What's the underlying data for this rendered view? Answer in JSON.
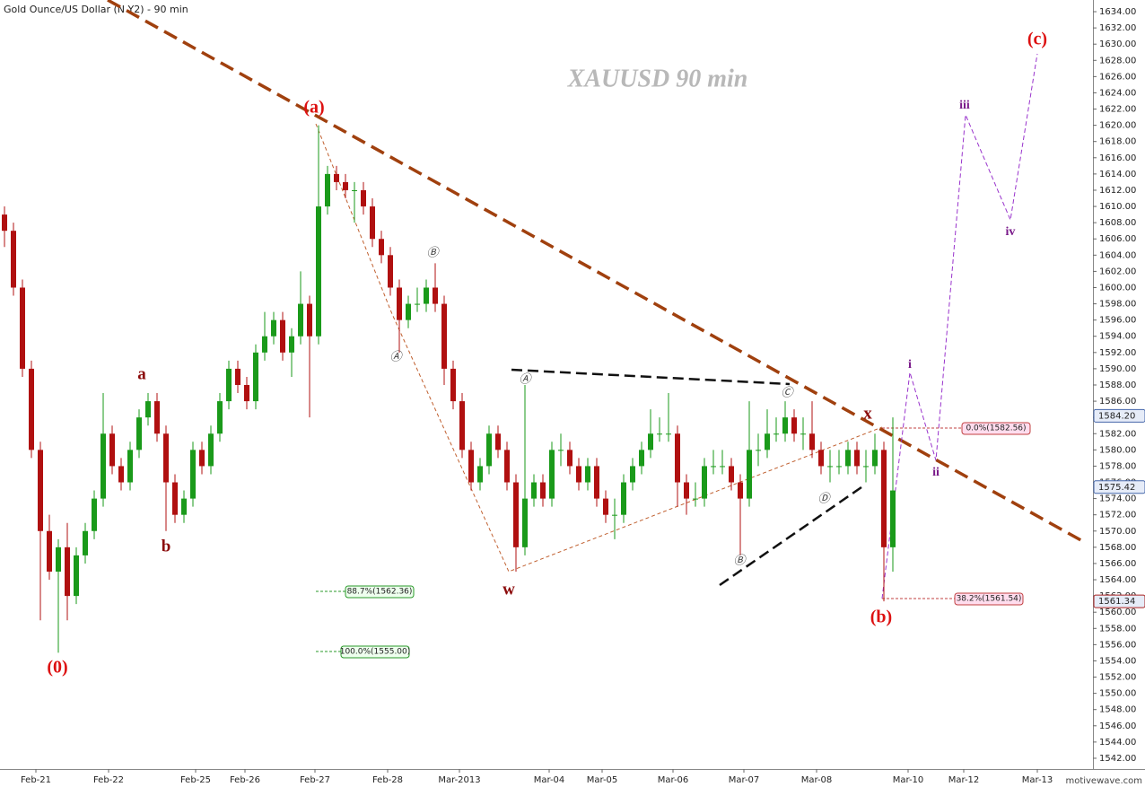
{
  "chart_data": {
    "type": "candlestick",
    "title": "Gold Ounce/US Dollar (N Y2) - 90 min",
    "watermark_title": "XAUUSD  90 min",
    "credit": "motivewave.com",
    "up_color": "#1a9a1a",
    "down_color": "#b01010",
    "x": [
      1,
      3,
      5,
      7,
      9,
      11,
      13,
      15,
      17,
      19,
      21,
      23,
      25,
      27,
      29,
      31,
      33,
      35,
      37,
      39,
      41,
      43,
      45,
      47,
      49,
      51,
      53,
      55,
      57,
      59,
      61,
      63,
      65,
      67,
      69,
      71,
      73,
      75,
      77,
      79,
      81,
      83,
      85,
      87,
      89,
      91,
      93,
      95,
      97,
      99,
      101,
      103,
      105,
      107,
      109,
      111,
      113,
      115,
      117,
      119,
      121,
      123,
      125,
      127,
      129,
      131,
      133,
      135,
      137,
      139,
      141,
      143,
      145,
      147,
      149,
      151,
      153,
      155,
      157,
      159,
      161,
      163,
      165,
      167,
      169,
      171,
      173,
      175,
      177,
      179,
      181,
      183,
      185,
      187,
      189,
      191,
      193,
      195,
      197,
      199
    ],
    "open": [
      1609,
      1607,
      1600,
      1590,
      1580,
      1570,
      1565,
      1568,
      1562,
      1567,
      1570,
      1574,
      1582,
      1578,
      1576,
      1580,
      1584,
      1586,
      1582,
      1576,
      1572,
      1574,
      1580,
      1578,
      1582,
      1586,
      1590,
      1588,
      1586,
      1592,
      1594,
      1596,
      1592,
      1594,
      1598,
      1594,
      1610,
      1614,
      1613,
      1612,
      1612,
      1610,
      1606,
      1604,
      1600,
      1596,
      1598,
      1598,
      1600,
      1598,
      1590,
      1586,
      1580,
      1576,
      1578,
      1582,
      1580,
      1576,
      1568,
      1574,
      1576,
      1574,
      1580,
      1580,
      1578,
      1576,
      1578,
      1574,
      1572,
      1572,
      1576,
      1578,
      1580,
      1582,
      1582,
      1582,
      1576,
      1574,
      1574,
      1578,
      1578,
      1578,
      1576,
      1574,
      1580,
      1580,
      1582,
      1582,
      1584,
      1582,
      1582,
      1580,
      1578,
      1578,
      1578,
      1580,
      1578,
      1578,
      1580,
      1568
    ],
    "high": [
      1610,
      1608,
      1601,
      1591,
      1581,
      1572,
      1569,
      1571,
      1568,
      1571,
      1575,
      1587,
      1583,
      1579,
      1581,
      1585,
      1587,
      1587,
      1583,
      1577,
      1575,
      1581,
      1581,
      1583,
      1587,
      1591,
      1591,
      1589,
      1593,
      1597,
      1597,
      1597,
      1595,
      1602,
      1599,
      1620,
      1615,
      1615,
      1614,
      1613,
      1613,
      1611,
      1607,
      1605,
      1601,
      1599,
      1600,
      1601,
      1603,
      1599,
      1591,
      1587,
      1581,
      1579,
      1583,
      1583,
      1581,
      1577,
      1588,
      1577,
      1577,
      1581,
      1582,
      1581,
      1579,
      1579,
      1579,
      1575,
      1574,
      1577,
      1579,
      1581,
      1585,
      1584,
      1587,
      1583,
      1577,
      1576,
      1579,
      1580,
      1580,
      1579,
      1577,
      1586,
      1582,
      1585,
      1584,
      1586,
      1585,
      1584,
      1586,
      1581,
      1580,
      1580,
      1581,
      1581,
      1580,
      1582,
      1581,
      1584
    ],
    "low": [
      1605,
      1599,
      1589,
      1579,
      1559,
      1564,
      1555,
      1559,
      1561,
      1566,
      1569,
      1573,
      1577,
      1575,
      1575,
      1579,
      1583,
      1581,
      1570,
      1571,
      1571,
      1573,
      1577,
      1577,
      1581,
      1585,
      1587,
      1585,
      1585,
      1591,
      1593,
      1591,
      1589,
      1593,
      1584,
      1593,
      1609,
      1612,
      1611,
      1608,
      1609,
      1605,
      1603,
      1599,
      1592,
      1595,
      1597,
      1597,
      1597,
      1588,
      1585,
      1579,
      1575,
      1575,
      1577,
      1579,
      1575,
      1565,
      1567,
      1573,
      1573,
      1573,
      1578,
      1577,
      1575,
      1575,
      1573,
      1571,
      1569,
      1571,
      1575,
      1577,
      1579,
      1581,
      1581,
      1573,
      1572,
      1573,
      1573,
      1577,
      1577,
      1575,
      1567,
      1573,
      1578,
      1579,
      1581,
      1581,
      1581,
      1580,
      1579,
      1577,
      1576,
      1577,
      1577,
      1577,
      1576,
      1577,
      1561.34,
      1565
    ],
    "close": [
      1607,
      1600,
      1590,
      1580,
      1570,
      1565,
      1568,
      1562,
      1567,
      1570,
      1574,
      1582,
      1578,
      1576,
      1580,
      1584,
      1586,
      1582,
      1576,
      1572,
      1574,
      1580,
      1578,
      1582,
      1586,
      1590,
      1588,
      1586,
      1592,
      1594,
      1596,
      1592,
      1594,
      1598,
      1594,
      1610,
      1614,
      1613,
      1612,
      1612,
      1610,
      1606,
      1604,
      1600,
      1596,
      1598,
      1598,
      1600,
      1598,
      1590,
      1586,
      1580,
      1576,
      1578,
      1582,
      1580,
      1576,
      1568,
      1574,
      1576,
      1574,
      1580,
      1580,
      1578,
      1576,
      1578,
      1574,
      1572,
      1572,
      1576,
      1578,
      1580,
      1582,
      1582,
      1582,
      1576,
      1574,
      1574,
      1578,
      1578,
      1578,
      1576,
      1574,
      1580,
      1580,
      1582,
      1582,
      1584,
      1582,
      1582,
      1580,
      1578,
      1578,
      1578,
      1580,
      1578,
      1578,
      1580,
      1568,
      1575
    ],
    "xlim": [
      0,
      243.6
    ],
    "xticks": [
      {
        "value": 8,
        "label": "Feb-21"
      },
      {
        "value": 24.2,
        "label": "Feb-22"
      },
      {
        "value": 43.6,
        "label": "Feb-25"
      },
      {
        "value": 54.6,
        "label": "Feb-26"
      },
      {
        "value": 70.2,
        "label": "Feb-27"
      },
      {
        "value": 86.4,
        "label": "Feb-28"
      },
      {
        "value": 102.4,
        "label": "Mar-2013"
      },
      {
        "value": 122.4,
        "label": "Mar-04"
      },
      {
        "value": 134.2,
        "label": "Mar-05"
      },
      {
        "value": 150,
        "label": "Mar-06"
      },
      {
        "value": 165.8,
        "label": "Mar-07"
      },
      {
        "value": 182,
        "label": "Mar-08"
      },
      {
        "value": 202.4,
        "label": "Mar-10"
      },
      {
        "value": 214.8,
        "label": "Mar-12"
      },
      {
        "value": 231.2,
        "label": "Mar-13"
      }
    ],
    "ylim": [
      1540.67,
      1635.44
    ],
    "yticks": [
      {
        "value": 1542,
        "label": "1542.00"
      },
      {
        "value": 1544,
        "label": "1544.00"
      },
      {
        "value": 1546,
        "label": "1546.00"
      },
      {
        "value": 1548,
        "label": "1548.00"
      },
      {
        "value": 1550,
        "label": "1550.00"
      },
      {
        "value": 1552,
        "label": "1552.00"
      },
      {
        "value": 1554,
        "label": "1554.00"
      },
      {
        "value": 1556,
        "label": "1556.00"
      },
      {
        "value": 1558,
        "label": "1558.00"
      },
      {
        "value": 1560,
        "label": "1560.00"
      },
      {
        "value": 1562,
        "label": "1562.00"
      },
      {
        "value": 1564,
        "label": "1564.00"
      },
      {
        "value": 1566,
        "label": "1566.00"
      },
      {
        "value": 1568,
        "label": "1568.00"
      },
      {
        "value": 1570,
        "label": "1570.00"
      },
      {
        "value": 1572,
        "label": "1572.00"
      },
      {
        "value": 1574,
        "label": "1574.00"
      },
      {
        "value": 1576,
        "label": "1576.00"
      },
      {
        "value": 1578,
        "label": "1578.00"
      },
      {
        "value": 1580,
        "label": "1580.00"
      },
      {
        "value": 1582,
        "label": "1582.00"
      },
      {
        "value": 1584,
        "label": "1584.00"
      },
      {
        "value": 1586,
        "label": "1586.00"
      },
      {
        "value": 1588,
        "label": "1588.00"
      },
      {
        "value": 1590,
        "label": "1590.00"
      },
      {
        "value": 1592,
        "label": "1592.00"
      },
      {
        "value": 1594,
        "label": "1594.00"
      },
      {
        "value": 1596,
        "label": "1596.00"
      },
      {
        "value": 1598,
        "label": "1598.00"
      },
      {
        "value": 1600,
        "label": "1600.00"
      },
      {
        "value": 1602,
        "label": "1602.00"
      },
      {
        "value": 1604,
        "label": "1604.00"
      },
      {
        "value": 1606,
        "label": "1606.00"
      },
      {
        "value": 1608,
        "label": "1608.00"
      },
      {
        "value": 1610,
        "label": "1610.00"
      },
      {
        "value": 1612,
        "label": "1612.00"
      },
      {
        "value": 1614,
        "label": "1614.00"
      },
      {
        "value": 1616,
        "label": "1616.00"
      },
      {
        "value": 1618,
        "label": "1618.00"
      },
      {
        "value": 1620,
        "label": "1620.00"
      },
      {
        "value": 1622,
        "label": "1622.00"
      },
      {
        "value": 1624,
        "label": "1624.00"
      },
      {
        "value": 1626,
        "label": "1626.00"
      },
      {
        "value": 1628,
        "label": "1628.00"
      },
      {
        "value": 1630,
        "label": "1630.00"
      },
      {
        "value": 1632,
        "label": "1632.00"
      },
      {
        "value": 1634,
        "label": "1634.00"
      }
    ],
    "price_tags": [
      {
        "value": 1584.2,
        "label": "1584.20"
      },
      {
        "value": 1575.42,
        "label": "1575.42"
      },
      {
        "value": 1561.34,
        "label": "1561.34"
      }
    ],
    "fib_labels": [
      "0.0%(1582.56)",
      "38.2%(1561.54)",
      "88.7%(1562.36)",
      "100.0%(1555.00)"
    ],
    "wave_labels": [
      "(0)",
      "a",
      "b",
      "(a)",
      "Ⓐ",
      "Ⓑ",
      "w",
      "Ⓐ",
      "Ⓑ",
      "Ⓒ",
      "Ⓓ",
      "x",
      "(b)",
      "i",
      "ii",
      "iii",
      "iv",
      "(c)"
    ]
  }
}
